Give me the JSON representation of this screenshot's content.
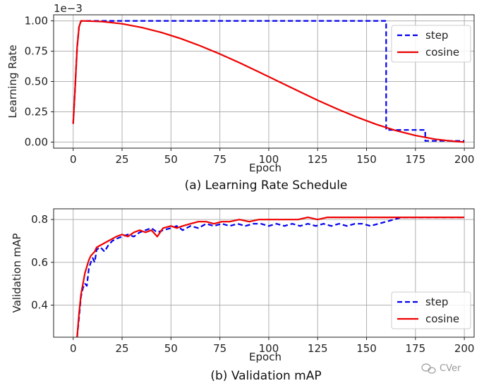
{
  "chart_data": [
    {
      "type": "line",
      "caption": "(a) Learning Rate Schedule",
      "xlabel": "Epoch",
      "ylabel": "Learning Rate",
      "y_multiplier": "1e−3",
      "xlim": [
        -10,
        205
      ],
      "ylim": [
        -0.05,
        1.05
      ],
      "xticks": [
        0,
        25,
        50,
        75,
        100,
        125,
        150,
        175,
        200
      ],
      "xtick_labels": [
        "0",
        "25",
        "50",
        "75",
        "100",
        "125",
        "150",
        "175",
        "200"
      ],
      "yticks": [
        0,
        0.25,
        0.5,
        0.75,
        1.0
      ],
      "ytick_labels": [
        "0.00",
        "0.25",
        "0.50",
        "0.75",
        "1.00"
      ],
      "grid": true,
      "legend_position": "top-right",
      "series": [
        {
          "name": "step",
          "color": "#0000ee",
          "style": "dashed",
          "x": [
            0,
            1,
            2,
            3,
            4,
            5,
            160,
            160,
            180,
            180,
            200
          ],
          "y": [
            0.15,
            0.45,
            0.78,
            0.95,
            1.0,
            1.0,
            1.0,
            0.1,
            0.1,
            0.01,
            0.01
          ]
        },
        {
          "name": "cosine",
          "color": "#ee0000",
          "style": "solid",
          "x": [
            0,
            1,
            2,
            3,
            4,
            5,
            15,
            25,
            35,
            45,
            55,
            65,
            75,
            85,
            95,
            105,
            115,
            125,
            135,
            145,
            155,
            165,
            175,
            185,
            195,
            200
          ],
          "y": [
            0.15,
            0.45,
            0.78,
            0.95,
            1.0,
            1.0,
            0.994,
            0.976,
            0.946,
            0.905,
            0.854,
            0.794,
            0.727,
            0.655,
            0.578,
            0.5,
            0.422,
            0.345,
            0.273,
            0.206,
            0.146,
            0.095,
            0.054,
            0.024,
            0.006,
            0.0
          ]
        }
      ]
    },
    {
      "type": "line",
      "caption": "(b) Validation mAP",
      "xlabel": "Epoch",
      "ylabel": "Validation mAP",
      "xlim": [
        -10,
        205
      ],
      "ylim": [
        0.25,
        0.85
      ],
      "xticks": [
        0,
        25,
        50,
        75,
        100,
        125,
        150,
        175,
        200
      ],
      "xtick_labels": [
        "0",
        "25",
        "50",
        "75",
        "100",
        "125",
        "150",
        "175",
        "200"
      ],
      "yticks": [
        0.4,
        0.6,
        0.8
      ],
      "ytick_labels": [
        "0.4",
        "0.6",
        "0.8"
      ],
      "grid": true,
      "legend_position": "lower-right",
      "series": [
        {
          "name": "step",
          "color": "#0000ee",
          "style": "dashed",
          "x": [
            2,
            3,
            4,
            5,
            6,
            7,
            8,
            9,
            10,
            11,
            12,
            14,
            16,
            18,
            20,
            22,
            25,
            28,
            31,
            34,
            37,
            40,
            43,
            46,
            50,
            53,
            56,
            60,
            64,
            68,
            72,
            76,
            80,
            84,
            88,
            92,
            96,
            100,
            104,
            108,
            112,
            116,
            120,
            124,
            128,
            132,
            136,
            140,
            144,
            148,
            152,
            156,
            160,
            164,
            168,
            172,
            176,
            180,
            185,
            190,
            195,
            200
          ],
          "y": [
            0.25,
            0.34,
            0.44,
            0.48,
            0.5,
            0.49,
            0.57,
            0.6,
            0.62,
            0.6,
            0.66,
            0.67,
            0.65,
            0.68,
            0.7,
            0.71,
            0.72,
            0.73,
            0.72,
            0.74,
            0.75,
            0.76,
            0.74,
            0.75,
            0.76,
            0.77,
            0.75,
            0.77,
            0.76,
            0.78,
            0.77,
            0.78,
            0.77,
            0.78,
            0.77,
            0.78,
            0.78,
            0.77,
            0.78,
            0.77,
            0.78,
            0.77,
            0.78,
            0.77,
            0.78,
            0.77,
            0.78,
            0.77,
            0.78,
            0.78,
            0.77,
            0.78,
            0.79,
            0.8,
            0.81,
            0.81,
            0.81,
            0.81,
            0.81,
            0.81,
            0.81,
            0.81
          ]
        },
        {
          "name": "cosine",
          "color": "#ee0000",
          "style": "solid",
          "x": [
            2,
            3,
            4,
            5,
            6,
            7,
            8,
            9,
            10,
            11,
            12,
            14,
            16,
            18,
            20,
            22,
            25,
            28,
            31,
            34,
            37,
            40,
            43,
            46,
            50,
            53,
            56,
            60,
            64,
            68,
            72,
            76,
            80,
            85,
            90,
            95,
            100,
            105,
            110,
            115,
            120,
            125,
            130,
            135,
            140,
            145,
            150,
            155,
            160,
            165,
            170,
            175,
            180,
            185,
            190,
            195,
            200
          ],
          "y": [
            0.25,
            0.36,
            0.45,
            0.5,
            0.55,
            0.58,
            0.61,
            0.63,
            0.64,
            0.65,
            0.67,
            0.68,
            0.69,
            0.7,
            0.71,
            0.72,
            0.73,
            0.72,
            0.74,
            0.75,
            0.74,
            0.75,
            0.72,
            0.76,
            0.77,
            0.76,
            0.77,
            0.78,
            0.79,
            0.79,
            0.78,
            0.79,
            0.79,
            0.8,
            0.79,
            0.8,
            0.8,
            0.8,
            0.8,
            0.8,
            0.81,
            0.8,
            0.81,
            0.81,
            0.81,
            0.81,
            0.81,
            0.81,
            0.81,
            0.81,
            0.81,
            0.81,
            0.81,
            0.81,
            0.81,
            0.81,
            0.81
          ]
        }
      ]
    }
  ],
  "watermark": "CVer"
}
